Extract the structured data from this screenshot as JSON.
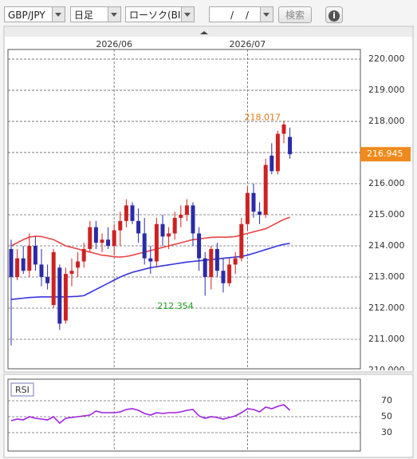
{
  "toolbar": {
    "pair": "GBP/JPY",
    "period": "日足",
    "chart_kind": "ローソク(BID)",
    "date_separators": [
      "/",
      "/"
    ],
    "search": "検索",
    "info": "i"
  },
  "chart_data": {
    "type": "candlestick",
    "categories": [
      null,
      null,
      null,
      null,
      null,
      null,
      null,
      null,
      null,
      null,
      null,
      null,
      null,
      null,
      null,
      null,
      null,
      "2026/06",
      null,
      null,
      null,
      null,
      null,
      null,
      null,
      null,
      null,
      null,
      null,
      null,
      null,
      null,
      null,
      null,
      null,
      null,
      null,
      null,
      null,
      "2026/07",
      null,
      null,
      null,
      null,
      null,
      null,
      null
    ],
    "open": [
      213.9,
      213.0,
      213.6,
      213.2,
      214.0,
      213.4,
      213.0,
      212.1,
      213.3,
      211.6,
      213.1,
      213.3,
      213.5,
      213.9,
      214.6,
      214.1,
      214.2,
      214.0,
      214.5,
      214.8,
      215.3,
      214.8,
      214.4,
      213.6,
      213.5,
      214.7,
      214.3,
      214.4,
      214.9,
      215.0,
      215.3,
      214.4,
      213.6,
      213.0,
      213.9,
      213.2,
      212.8,
      213.4,
      213.6,
      214.7,
      215.7,
      215.1,
      215.0,
      216.9,
      216.4,
      217.6,
      217.5
    ],
    "high": [
      214.2,
      213.9,
      214.0,
      214.4,
      214.3,
      213.9,
      213.4,
      213.9,
      213.4,
      213.3,
      213.6,
      213.8,
      214.1,
      214.8,
      214.8,
      214.4,
      214.6,
      214.7,
      215.1,
      215.5,
      215.4,
      215.2,
      214.9,
      214.0,
      214.9,
      215.0,
      214.6,
      215.1,
      215.3,
      215.5,
      215.4,
      214.6,
      213.8,
      214.0,
      214.1,
      213.6,
      213.6,
      213.8,
      214.9,
      215.9,
      216.0,
      215.4,
      216.8,
      217.3,
      217.7,
      218.017,
      217.8
    ],
    "low": [
      210.8,
      212.9,
      213.1,
      213.0,
      213.2,
      212.7,
      212.6,
      212.0,
      211.3,
      211.5,
      212.7,
      213.0,
      213.3,
      213.8,
      213.9,
      213.8,
      213.9,
      213.7,
      214.0,
      214.6,
      214.7,
      214.1,
      213.4,
      213.1,
      213.3,
      214.0,
      213.9,
      214.2,
      214.6,
      214.8,
      214.0,
      213.2,
      212.4,
      212.6,
      213.0,
      212.5,
      212.7,
      213.1,
      213.5,
      214.5,
      214.9,
      214.7,
      214.9,
      216.3,
      216.3,
      217.3,
      216.8
    ],
    "close": [
      213.0,
      213.6,
      213.2,
      214.0,
      213.4,
      213.0,
      212.8,
      213.8,
      211.5,
      213.1,
      213.2,
      213.5,
      213.9,
      214.6,
      214.1,
      214.2,
      214.0,
      214.5,
      214.8,
      215.3,
      214.8,
      214.4,
      213.6,
      213.5,
      214.7,
      214.3,
      214.4,
      214.9,
      215.0,
      215.3,
      214.4,
      213.6,
      213.0,
      213.9,
      213.2,
      212.8,
      213.4,
      213.6,
      214.7,
      215.7,
      215.1,
      215.0,
      216.6,
      216.4,
      217.6,
      217.9,
      216.945
    ],
    "up_color": "#cc2222",
    "down_color": "#2b2ba8",
    "high_color": "#e07a1e",
    "low_color": "#22a022",
    "price_box_color": "#f08a1c",
    "low_marker": 212.354,
    "series": [
      {
        "color": "#e84545",
        "values": [
          214.0,
          214.1,
          214.2,
          214.28,
          214.31,
          214.3,
          214.25,
          214.2,
          214.1,
          214.0,
          213.95,
          213.9,
          213.85,
          213.8,
          213.75,
          213.7,
          213.68,
          213.65,
          213.64,
          213.66,
          213.7,
          213.75,
          213.8,
          213.85,
          213.9,
          213.95,
          214.0,
          214.05,
          214.1,
          214.15,
          214.2,
          214.22,
          214.25,
          214.27,
          214.28,
          214.28,
          214.28,
          214.3,
          214.35,
          214.4,
          214.45,
          214.5,
          214.55,
          214.65,
          214.75,
          214.85,
          214.92
        ]
      },
      {
        "color": "#3434e0",
        "values": [
          212.28,
          212.3,
          212.32,
          212.34,
          212.35,
          212.36,
          212.36,
          212.36,
          212.36,
          212.36,
          212.37,
          212.38,
          212.4,
          212.5,
          212.6,
          212.7,
          212.8,
          212.9,
          213.0,
          213.08,
          213.15,
          213.2,
          213.25,
          213.3,
          213.33,
          213.36,
          213.39,
          213.42,
          213.45,
          213.48,
          213.5,
          213.52,
          213.54,
          213.56,
          213.58,
          213.6,
          213.62,
          213.64,
          213.66,
          213.7,
          213.76,
          213.82,
          213.88,
          213.94,
          214.0,
          214.05,
          214.08
        ]
      }
    ],
    "ylim": [
      210.05,
      220.31
    ],
    "yticks": [
      {
        "value": 210,
        "label": "210.000"
      },
      {
        "value": 211,
        "label": "211.000"
      },
      {
        "value": 212,
        "label": "212.000"
      },
      {
        "value": 213,
        "label": "213.000"
      },
      {
        "value": 214,
        "label": "214.000"
      },
      {
        "value": 215,
        "label": "215.000"
      },
      {
        "value": 216,
        "label": "216.000"
      },
      {
        "value": 217,
        "label": "217.000"
      },
      {
        "value": 218,
        "label": "218.000"
      },
      {
        "value": 219,
        "label": "219.000"
      },
      {
        "value": 220,
        "label": "220.000"
      }
    ],
    "grid": true,
    "rsi": {
      "label": "RSI",
      "color": "#a020e0",
      "ylim": [
        7,
        97
      ],
      "yticks": [
        70,
        50,
        30
      ],
      "values": [
        45,
        47,
        46,
        50,
        48,
        47,
        46,
        50,
        42,
        48,
        49,
        50,
        51,
        52,
        57,
        55,
        55,
        55,
        56,
        59,
        60,
        58,
        54,
        52,
        55,
        54,
        55,
        55,
        56,
        58,
        59,
        51,
        48,
        50,
        49,
        47,
        49,
        51,
        55,
        60,
        59,
        56,
        62,
        60,
        63,
        65,
        58
      ]
    }
  }
}
